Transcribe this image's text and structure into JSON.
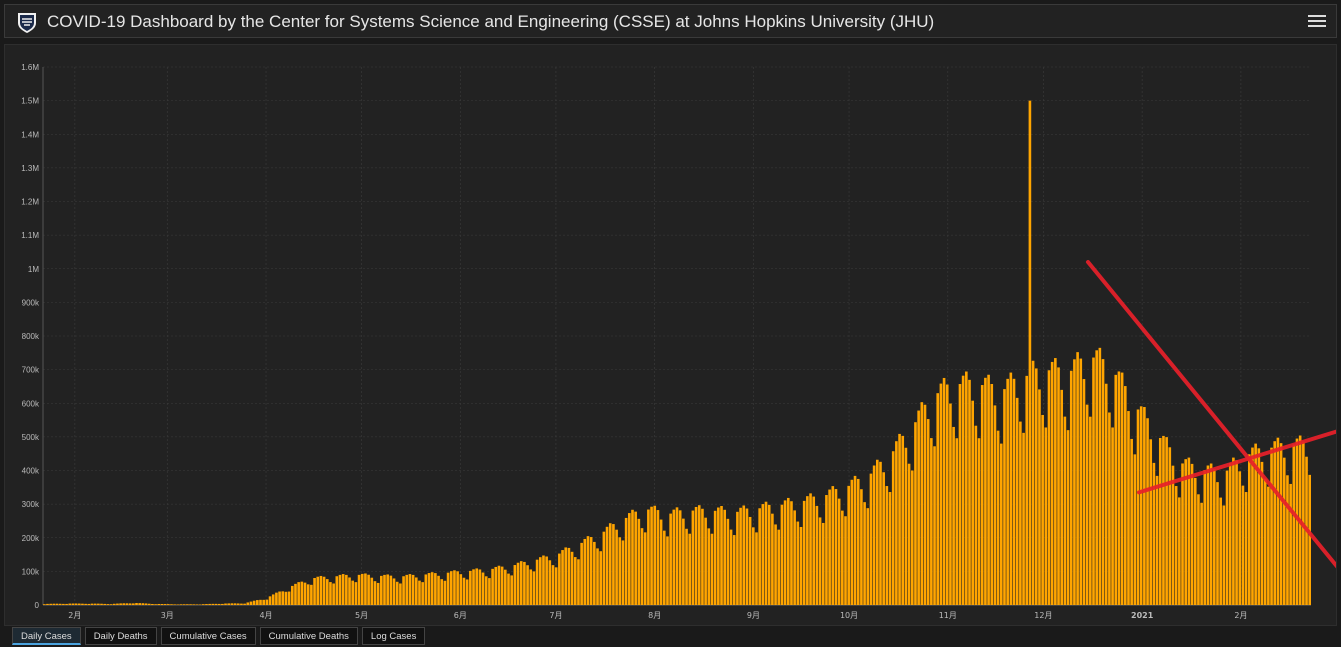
{
  "header": {
    "title": "COVID-19 Dashboard by the Center for Systems Science and Engineering (CSSE) at Johns Hopkins University (JHU)",
    "logo_icon": "jhu-shield-icon",
    "menu_icon": "hamburger-menu-icon"
  },
  "tabs": [
    {
      "label": "Daily Cases",
      "active": true
    },
    {
      "label": "Daily Deaths",
      "active": false
    },
    {
      "label": "Cumulative Cases",
      "active": false
    },
    {
      "label": "Cumulative Deaths",
      "active": false
    },
    {
      "label": "Log Cases",
      "active": false
    }
  ],
  "colors": {
    "bar": "#ffa500",
    "background": "#222222",
    "grid": "#3c3c3c",
    "annotation": "#e8202a",
    "text": "#bbbbbb"
  },
  "chart_data": {
    "type": "bar",
    "title": "",
    "xlabel": "",
    "ylabel": "",
    "ylim": [
      0,
      1600000
    ],
    "yticks": [
      {
        "value": 0,
        "label": "0"
      },
      {
        "value": 100000,
        "label": "100k"
      },
      {
        "value": 200000,
        "label": "200k"
      },
      {
        "value": 300000,
        "label": "300k"
      },
      {
        "value": 400000,
        "label": "400k"
      },
      {
        "value": 500000,
        "label": "500k"
      },
      {
        "value": 600000,
        "label": "600k"
      },
      {
        "value": 700000,
        "label": "700k"
      },
      {
        "value": 800000,
        "label": "800k"
      },
      {
        "value": 900000,
        "label": "900k"
      },
      {
        "value": 1000000,
        "label": "1M"
      },
      {
        "value": 1100000,
        "label": "1.1M"
      },
      {
        "value": 1200000,
        "label": "1.2M"
      },
      {
        "value": 1300000,
        "label": "1.3M"
      },
      {
        "value": 1400000,
        "label": "1.4M"
      },
      {
        "value": 1500000,
        "label": "1.5M"
      },
      {
        "value": 1600000,
        "label": "1.6M"
      }
    ],
    "xrange": [
      "2020-01-22",
      "2021-02-23"
    ],
    "xticks": [
      {
        "date": "2020-02-01",
        "label": "2月"
      },
      {
        "date": "2020-03-01",
        "label": "3月"
      },
      {
        "date": "2020-04-01",
        "label": "4月"
      },
      {
        "date": "2020-05-01",
        "label": "5月"
      },
      {
        "date": "2020-06-01",
        "label": "6月"
      },
      {
        "date": "2020-07-01",
        "label": "7月"
      },
      {
        "date": "2020-08-01",
        "label": "8月"
      },
      {
        "date": "2020-09-01",
        "label": "9月"
      },
      {
        "date": "2020-10-01",
        "label": "10月"
      },
      {
        "date": "2020-11-01",
        "label": "11月"
      },
      {
        "date": "2020-12-01",
        "label": "12月"
      },
      {
        "date": "2021-01-01",
        "label": "2021",
        "bold": true
      },
      {
        "date": "2021-02-01",
        "label": "2月"
      }
    ],
    "grid": true,
    "weekly_values": [
      3000,
      4000,
      4000,
      3000,
      6000,
      3000,
      2000,
      2000,
      4000,
      5000,
      20000,
      50000,
      75000,
      80000,
      85000,
      82000,
      80000,
      85000,
      90000,
      95000,
      100000,
      110000,
      125000,
      140000,
      170000,
      200000,
      240000,
      270000,
      255000,
      265000,
      265000,
      260000,
      270000,
      280000,
      290000,
      305000,
      330000,
      360000,
      420000,
      500000,
      590000,
      620000,
      620000,
      600000,
      640000,
      660000,
      650000,
      700000,
      660000,
      560000,
      480000,
      400000,
      380000,
      370000,
      420000,
      440000,
      450000
    ],
    "outlier": {
      "date": "2020-11-27",
      "value": 1500000
    },
    "annotations": [
      {
        "type": "line",
        "color": "#e8202a",
        "from": {
          "date": "2020-12-15",
          "value": 1020000
        },
        "to": {
          "date": "2021-02-23",
          "value": 100000
        }
      },
      {
        "type": "line",
        "color": "#e8202a",
        "from": {
          "date": "2020-12-31",
          "value": 335000
        },
        "to": {
          "date": "2021-02-23",
          "value": 520000
        }
      }
    ]
  }
}
